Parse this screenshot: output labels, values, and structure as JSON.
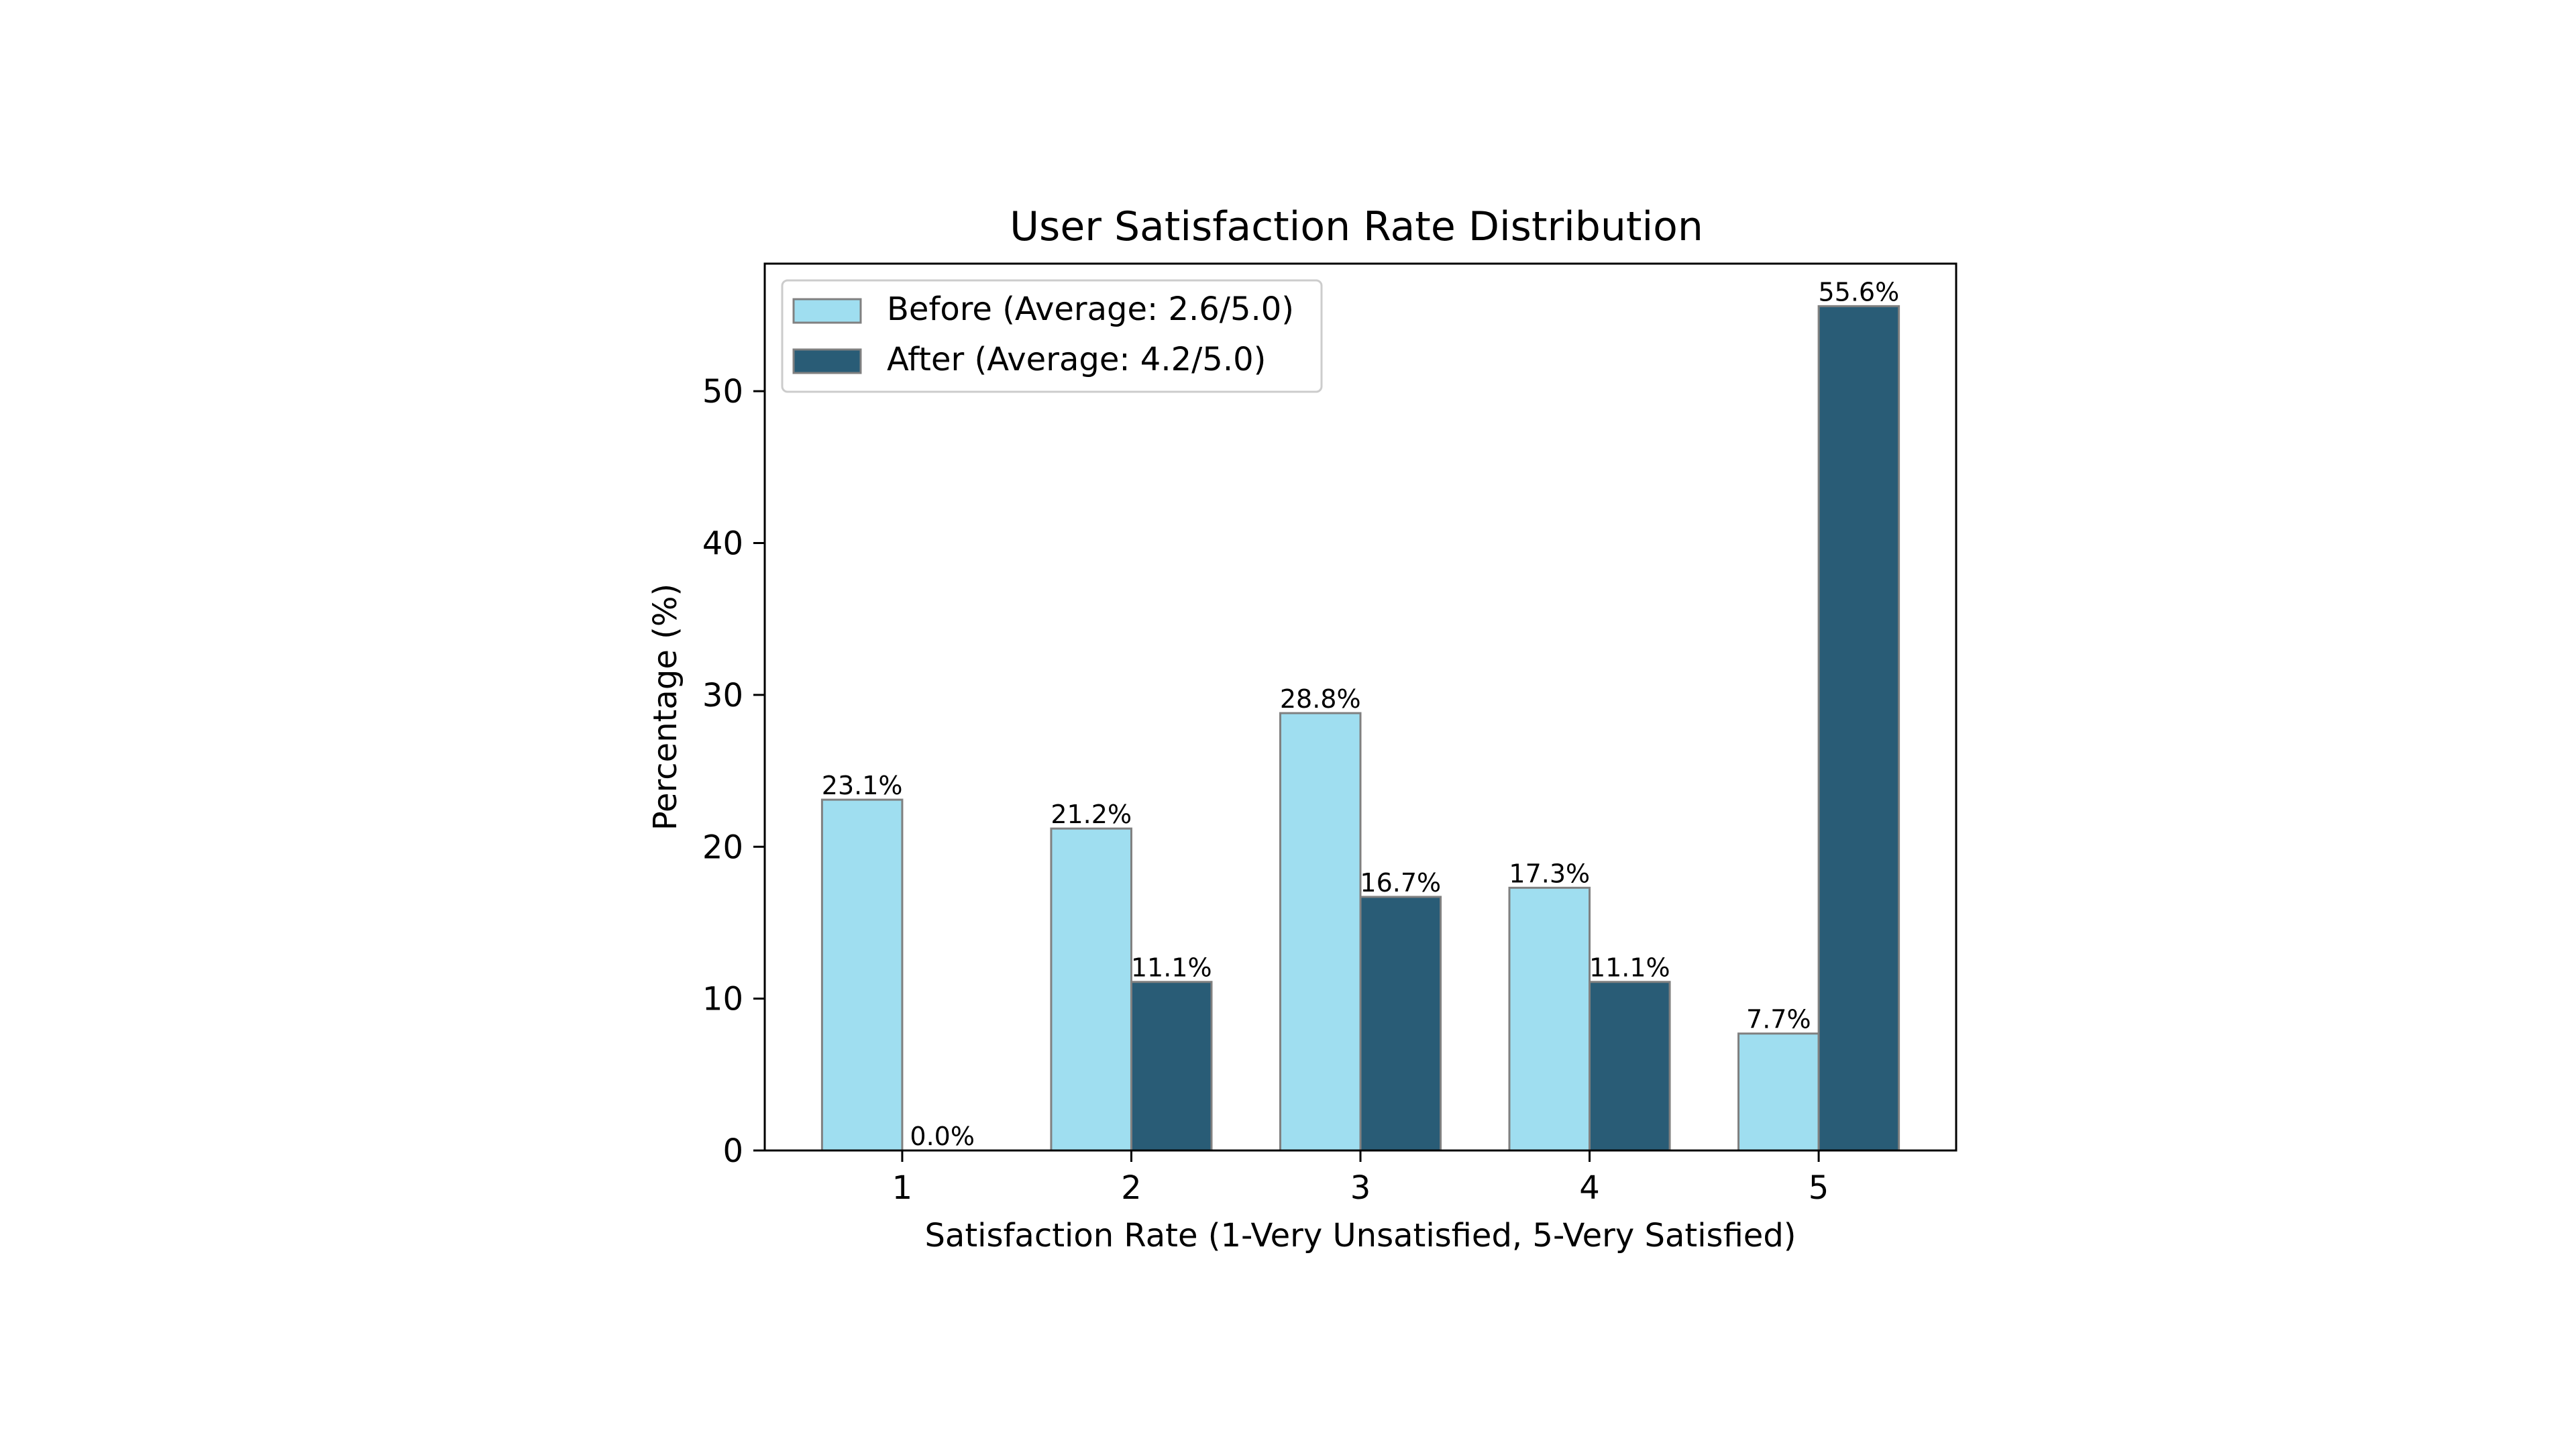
{
  "chart_data": {
    "type": "bar",
    "title": "User Satisfaction Rate Distribution",
    "xlabel": "Satisfaction Rate (1-Very Unsatisfied, 5-Very Satisfied)",
    "ylabel": "Percentage (%)",
    "categories": [
      "1",
      "2",
      "3",
      "4",
      "5"
    ],
    "ylim": [
      0,
      58.4
    ],
    "yticks": [
      0,
      10,
      20,
      30,
      40,
      50
    ],
    "grid": false,
    "legend_position": "top-left",
    "series": [
      {
        "name": "Before (Average: 2.6/5.0)",
        "values": [
          23.1,
          21.2,
          28.8,
          17.3,
          7.7
        ],
        "labels": [
          "23.1%",
          "21.2%",
          "28.8%",
          "17.3%",
          "7.7%"
        ],
        "color": "#9fdef0"
      },
      {
        "name": "After (Average: 4.2/5.0)",
        "values": [
          0.0,
          11.1,
          16.7,
          11.1,
          55.6
        ],
        "labels": [
          "0.0%",
          "11.1%",
          "16.7%",
          "11.1%",
          "55.6%"
        ],
        "color": "#295c76"
      }
    ],
    "bar_edge_color": "#808080"
  }
}
